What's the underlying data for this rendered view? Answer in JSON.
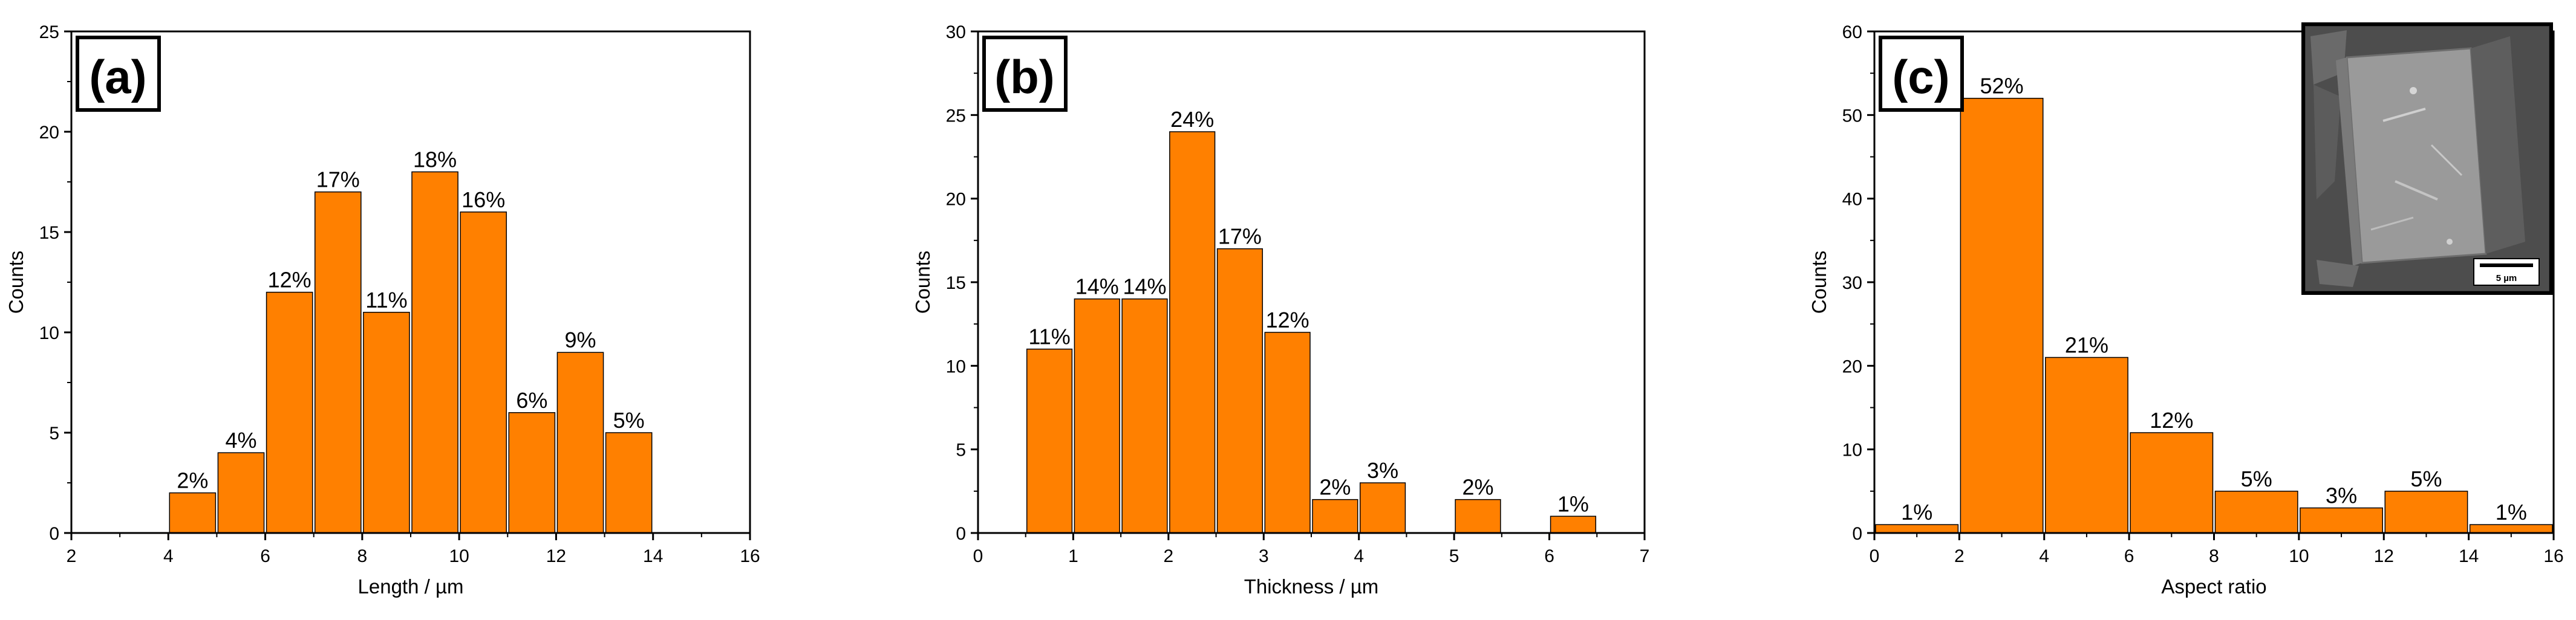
{
  "colors": {
    "bar": "#ff8000",
    "bar_edge": "#000000",
    "axis": "#000000"
  },
  "chart_data": [
    {
      "type": "bar",
      "panel_label": "(a)",
      "xlabel": "Length / µm",
      "ylabel": "Counts",
      "xlim": [
        2,
        16
      ],
      "ylim": [
        0,
        25
      ],
      "xticks": [
        "2",
        "4",
        "6",
        "8",
        "10",
        "12",
        "14",
        "16"
      ],
      "yticks": [
        "0",
        "5",
        "10",
        "15",
        "20",
        "25"
      ],
      "bins": [
        {
          "x0": 4,
          "x1": 5,
          "value": 2,
          "label": "2%"
        },
        {
          "x0": 5,
          "x1": 6,
          "value": 4,
          "label": "4%"
        },
        {
          "x0": 6,
          "x1": 7,
          "value": 12,
          "label": "12%"
        },
        {
          "x0": 7,
          "x1": 8,
          "value": 17,
          "label": "17%"
        },
        {
          "x0": 8,
          "x1": 9,
          "value": 11,
          "label": "11%"
        },
        {
          "x0": 9,
          "x1": 10,
          "value": 18,
          "label": "18%"
        },
        {
          "x0": 10,
          "x1": 11,
          "value": 16,
          "label": "16%"
        },
        {
          "x0": 11,
          "x1": 12,
          "value": 6,
          "label": "6%"
        },
        {
          "x0": 12,
          "x1": 13,
          "value": 9,
          "label": "9%"
        },
        {
          "x0": 13,
          "x1": 14,
          "value": 5,
          "label": "5%"
        }
      ]
    },
    {
      "type": "bar",
      "panel_label": "(b)",
      "xlabel": "Thickness / µm",
      "ylabel": "Counts",
      "xlim": [
        0,
        7
      ],
      "ylim": [
        0,
        30
      ],
      "xticks": [
        "0",
        "1",
        "2",
        "3",
        "4",
        "5",
        "6",
        "7"
      ],
      "yticks": [
        "0",
        "5",
        "10",
        "15",
        "20",
        "25",
        "30"
      ],
      "bins": [
        {
          "x0": 0.5,
          "x1": 1.0,
          "value": 11,
          "label": "11%"
        },
        {
          "x0": 1.0,
          "x1": 1.5,
          "value": 14,
          "label": "14%"
        },
        {
          "x0": 1.5,
          "x1": 2.0,
          "value": 14,
          "label": "14%"
        },
        {
          "x0": 2.0,
          "x1": 2.5,
          "value": 24,
          "label": "24%"
        },
        {
          "x0": 2.5,
          "x1": 3.0,
          "value": 17,
          "label": "17%"
        },
        {
          "x0": 3.0,
          "x1": 3.5,
          "value": 12,
          "label": "12%"
        },
        {
          "x0": 3.5,
          "x1": 4.0,
          "value": 2,
          "label": "2%"
        },
        {
          "x0": 4.0,
          "x1": 4.5,
          "value": 3,
          "label": "3%"
        },
        {
          "x0": 5.0,
          "x1": 5.5,
          "value": 2,
          "label": "2%"
        },
        {
          "x0": 6.0,
          "x1": 6.5,
          "value": 1,
          "label": "1%"
        }
      ]
    },
    {
      "type": "bar",
      "panel_label": "(c)",
      "xlabel": "Aspect ratio",
      "ylabel": "Counts",
      "xlim": [
        0,
        16
      ],
      "ylim": [
        0,
        60
      ],
      "xticks": [
        "0",
        "2",
        "4",
        "6",
        "8",
        "10",
        "12",
        "14",
        "16"
      ],
      "yticks": [
        "0",
        "10",
        "20",
        "30",
        "40",
        "50",
        "60"
      ],
      "bins": [
        {
          "x0": 0,
          "x1": 2,
          "value": 1,
          "label": "1%"
        },
        {
          "x0": 2,
          "x1": 4,
          "value": 52,
          "label": "52%"
        },
        {
          "x0": 4,
          "x1": 6,
          "value": 21,
          "label": "21%"
        },
        {
          "x0": 6,
          "x1": 8,
          "value": 12,
          "label": "12%"
        },
        {
          "x0": 8,
          "x1": 10,
          "value": 5,
          "label": "5%"
        },
        {
          "x0": 10,
          "x1": 12,
          "value": 3,
          "label": "3%"
        },
        {
          "x0": 12,
          "x1": 14,
          "value": 5,
          "label": "5%"
        },
        {
          "x0": 14,
          "x1": 16,
          "value": 1,
          "label": "1%"
        }
      ],
      "inset": {
        "scale_bar_label": "5 µm"
      }
    }
  ]
}
